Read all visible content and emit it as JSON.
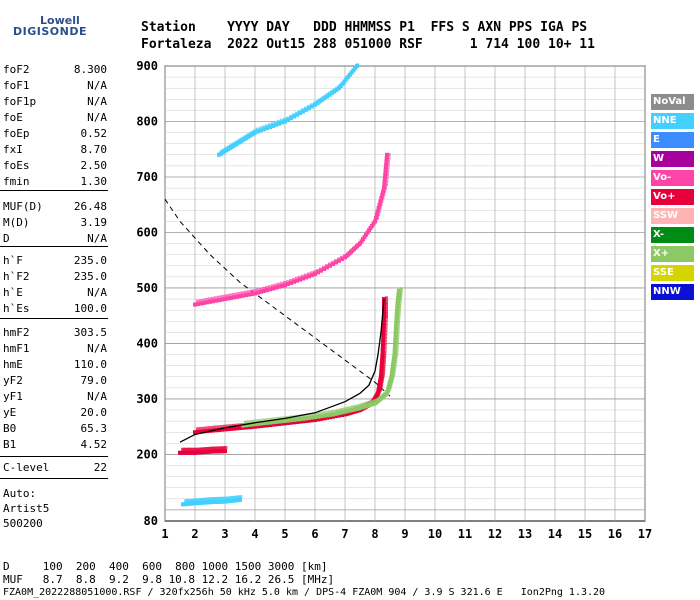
{
  "logo": {
    "line1": "Lowell",
    "line2": "DIGISONDE"
  },
  "header": {
    "line1": "Station    YYYY DAY   DDD HHMMSS P1  FFS S AXN PPS IGA PS",
    "line2": "Fortaleza  2022 Out15 288 051000 RSF      1 714 100 10+ 11"
  },
  "params": [
    {
      "name": "foF2",
      "value": "8.300"
    },
    {
      "name": "foF1",
      "value": "N/A"
    },
    {
      "name": "foF1p",
      "value": "N/A"
    },
    {
      "name": "foE",
      "value": "N/A"
    },
    {
      "name": "foEp",
      "value": "0.52"
    },
    {
      "name": "fxI",
      "value": "8.70"
    },
    {
      "name": "foEs",
      "value": "2.50"
    },
    {
      "name": "fmin",
      "value": "1.30"
    },
    {
      "name": "MUF(D)",
      "value": "26.48"
    },
    {
      "name": "M(D)",
      "value": "3.19"
    },
    {
      "name": "D",
      "value": "N/A"
    },
    {
      "name": "h`F",
      "value": "235.0"
    },
    {
      "name": "h`F2",
      "value": "235.0"
    },
    {
      "name": "h`E",
      "value": "N/A"
    },
    {
      "name": "h`Es",
      "value": "100.0"
    },
    {
      "name": "hmF2",
      "value": "303.5"
    },
    {
      "name": "hmF1",
      "value": "N/A"
    },
    {
      "name": "hmE",
      "value": "110.0"
    },
    {
      "name": "yF2",
      "value": "79.0"
    },
    {
      "name": "yF1",
      "value": "N/A"
    },
    {
      "name": "yE",
      "value": "20.0"
    },
    {
      "name": "B0",
      "value": "65.3"
    },
    {
      "name": "B1",
      "value": "4.52"
    },
    {
      "name": "C-level",
      "value": "22"
    }
  ],
  "auto": {
    "line1": "Auto:",
    "line2": "Artist5",
    "line3": "500200"
  },
  "legend": [
    {
      "label": "NoVal",
      "color": "#8c8c8c",
      "text_color": "#ffffff"
    },
    {
      "label": "NNE",
      "color": "#44d0ff",
      "text_color": "#ffffff"
    },
    {
      "label": "E",
      "color": "#3c8cff",
      "text_color": "#ffffff"
    },
    {
      "label": "W",
      "color": "#a8009c",
      "text_color": "#ffffff"
    },
    {
      "label": "Vo-",
      "color": "#ff44a8",
      "text_color": "#ffffff"
    },
    {
      "label": "Vo+",
      "color": "#e8003c",
      "text_color": "#ffffff"
    },
    {
      "label": "SSW",
      "color": "#ffb4b4",
      "text_color": "#ffffff"
    },
    {
      "label": "X-",
      "color": "#008c14",
      "text_color": "#ffffff"
    },
    {
      "label": "X+",
      "color": "#8cc864",
      "text_color": "#ffffff"
    },
    {
      "label": "SSE",
      "color": "#d4d400",
      "text_color": "#ffffff"
    },
    {
      "label": "NNW",
      "color": "#0a10d4",
      "text_color": "#ffffff"
    }
  ],
  "footer": {
    "line1": "D     100  200  400  600  800 1000 1500 3000 [km]",
    "line2": "MUF   8.7  8.8  9.2  9.8 10.8 12.2 16.2 26.5 [MHz]",
    "line3": "FZA0M_2022288051000.RSF / 320fx256h 50 kHz 5.0 km / DPS-4 FZA0M 904 / 3.9 S 321.6 E   Ion2Png 1.3.20"
  },
  "chart_data": {
    "type": "scatter",
    "title": "",
    "xlabel": "",
    "ylabel": "",
    "xlim": [
      1,
      17
    ],
    "ylim": [
      80,
      900
    ],
    "x_ticks": [
      1,
      2,
      3,
      4,
      5,
      6,
      7,
      8,
      9,
      10,
      11,
      12,
      13,
      14,
      15,
      16,
      17
    ],
    "y_ticks": [
      200,
      300,
      400,
      500,
      600,
      700,
      800,
      900
    ],
    "y_tick_labels_extra": [
      80
    ],
    "grid": true,
    "series": [
      {
        "name": "F2 trace (1st hop)",
        "color": "#e8003c",
        "points": [
          [
            2.0,
            240
          ],
          [
            3.0,
            245
          ],
          [
            4.0,
            250
          ],
          [
            5.0,
            256
          ],
          [
            6.0,
            262
          ],
          [
            7.0,
            272
          ],
          [
            7.5,
            280
          ],
          [
            7.9,
            292
          ],
          [
            8.1,
            310
          ],
          [
            8.2,
            340
          ],
          [
            8.25,
            380
          ],
          [
            8.3,
            440
          ],
          [
            8.3,
            480
          ]
        ]
      },
      {
        "name": "X trace",
        "color": "#8cc864",
        "points": [
          [
            3.6,
            252
          ],
          [
            4.6,
            258
          ],
          [
            5.6,
            264
          ],
          [
            6.6,
            272
          ],
          [
            7.4,
            282
          ],
          [
            8.0,
            292
          ],
          [
            8.4,
            310
          ],
          [
            8.55,
            340
          ],
          [
            8.65,
            380
          ],
          [
            8.7,
            430
          ],
          [
            8.75,
            470
          ],
          [
            8.8,
            495
          ]
        ]
      },
      {
        "name": "F2 trace (2nd hop)",
        "color": "#ff44a8",
        "points": [
          [
            2.0,
            470
          ],
          [
            3.0,
            480
          ],
          [
            4.0,
            490
          ],
          [
            5.0,
            505
          ],
          [
            6.0,
            525
          ],
          [
            7.0,
            555
          ],
          [
            7.5,
            580
          ],
          [
            8.0,
            620
          ],
          [
            8.3,
            680
          ],
          [
            8.4,
            740
          ]
        ]
      },
      {
        "name": "F2 trace (3rd hop)",
        "color": "#44d0ff",
        "points": [
          [
            2.8,
            740
          ],
          [
            3.4,
            760
          ],
          [
            4.0,
            780
          ],
          [
            5.0,
            800
          ],
          [
            6.0,
            830
          ],
          [
            6.8,
            860
          ],
          [
            7.4,
            900
          ]
        ]
      },
      {
        "name": "Es trace",
        "color": "#e8003c",
        "points": [
          [
            1.5,
            203
          ],
          [
            2.0,
            203
          ],
          [
            2.5,
            205
          ],
          [
            3.0,
            206
          ]
        ]
      },
      {
        "name": "Low trace",
        "color": "#44d0ff",
        "points": [
          [
            1.6,
            110
          ],
          [
            2.0,
            112
          ],
          [
            2.5,
            114
          ],
          [
            3.0,
            115
          ],
          [
            3.5,
            118
          ]
        ]
      }
    ],
    "profile_line": {
      "points": [
        [
          8.3,
          480
        ],
        [
          8.2,
          420
        ],
        [
          8.1,
          380
        ],
        [
          8.0,
          350
        ],
        [
          7.8,
          325
        ],
        [
          7.5,
          310
        ],
        [
          7.0,
          295
        ],
        [
          6.0,
          275
        ],
        [
          5.0,
          265
        ],
        [
          4.0,
          257
        ],
        [
          3.0,
          248
        ],
        [
          2.0,
          236
        ],
        [
          1.5,
          222
        ]
      ]
    },
    "dashed_line": {
      "points": [
        [
          1.0,
          660
        ],
        [
          1.5,
          620
        ],
        [
          2.0,
          590
        ],
        [
          2.5,
          560
        ],
        [
          3.0,
          535
        ],
        [
          3.5,
          510
        ],
        [
          4.0,
          490
        ],
        [
          5.0,
          450
        ],
        [
          6.0,
          410
        ],
        [
          7.0,
          370
        ],
        [
          8.0,
          330
        ],
        [
          8.5,
          305
        ]
      ]
    }
  }
}
